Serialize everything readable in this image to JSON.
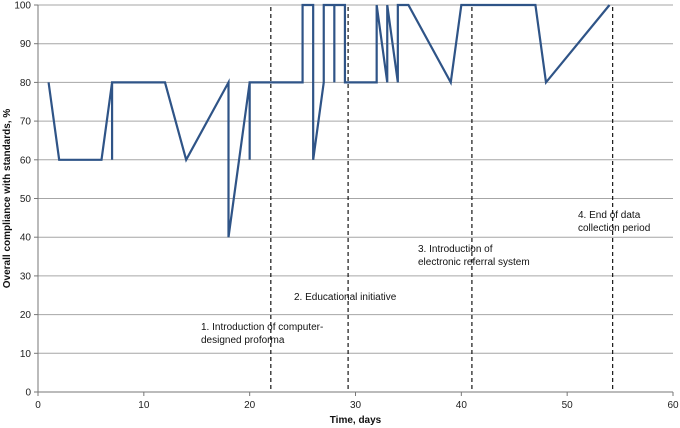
{
  "chart_data": {
    "type": "line",
    "xlabel": "Time, days",
    "ylabel": "Overall compliance with standards, %",
    "xlim": [
      0,
      60
    ],
    "ylim": [
      0,
      100
    ],
    "x_ticks": [
      0,
      10,
      20,
      30,
      40,
      50,
      60
    ],
    "y_ticks": [
      0,
      10,
      20,
      30,
      40,
      50,
      60,
      70,
      80,
      90,
      100
    ],
    "grid": "horizontal",
    "line_color": "#2f5487",
    "series": [
      {
        "points": [
          [
            1,
            80
          ],
          [
            2,
            60
          ],
          [
            6,
            60
          ],
          [
            7,
            80
          ],
          [
            7,
            60
          ],
          [
            7,
            80
          ],
          [
            12,
            80
          ],
          [
            14,
            60
          ],
          [
            18,
            80
          ],
          [
            18,
            40
          ],
          [
            20,
            80
          ],
          [
            20,
            60
          ],
          [
            20,
            80
          ],
          [
            25,
            80
          ],
          [
            25,
            100
          ],
          [
            26,
            100
          ],
          [
            26,
            60
          ],
          [
            27,
            80
          ],
          [
            27,
            100
          ],
          [
            28,
            100
          ],
          [
            28,
            80
          ],
          [
            28,
            100
          ],
          [
            29,
            100
          ],
          [
            29,
            80
          ],
          [
            29,
            100
          ],
          [
            29,
            80
          ],
          [
            32,
            80
          ],
          [
            32,
            100
          ],
          [
            33,
            80
          ],
          [
            33,
            100
          ],
          [
            34,
            80
          ],
          [
            34,
            100
          ],
          [
            35,
            100
          ],
          [
            39,
            80
          ],
          [
            40,
            100
          ],
          [
            47,
            100
          ],
          [
            48,
            80
          ],
          [
            54,
            100
          ]
        ]
      }
    ],
    "interventions": [
      {
        "x": 22,
        "label_lines": [
          "1. Introduction of computer-",
          "designed proforma"
        ]
      },
      {
        "x": 29.3,
        "label_lines": [
          "2. Educational initiative"
        ]
      },
      {
        "x": 41,
        "label_lines": [
          "3. Introduction of",
          "electronic referral system"
        ]
      },
      {
        "x": 54.3,
        "label_lines": [
          "4. End of data",
          "collection period"
        ]
      }
    ]
  }
}
